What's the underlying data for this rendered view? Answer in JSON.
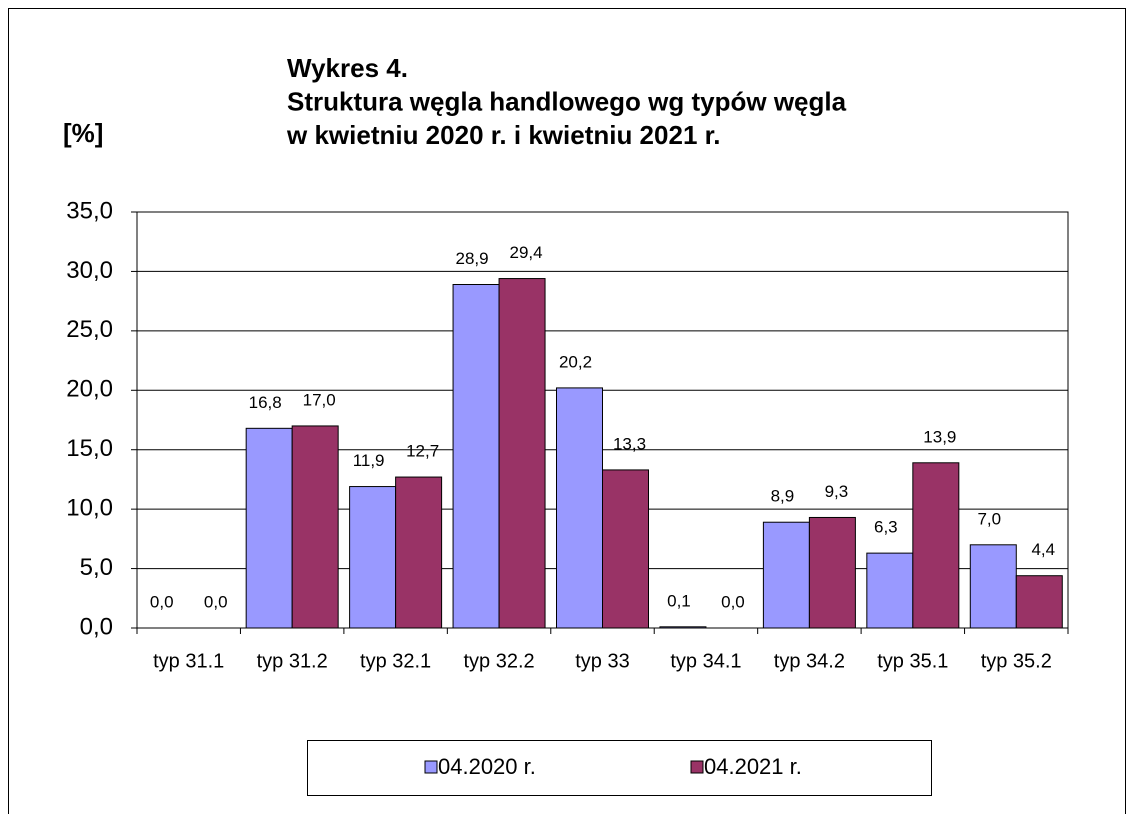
{
  "chart_data": {
    "type": "bar",
    "title_lines": [
      "Wykres 4.",
      "Struktura węgla handlowego wg typów węgla",
      "w kwietniu 2020 r. i kwietniu 2021 r."
    ],
    "y_label": "[%]",
    "categories": [
      "typ 31.1",
      "typ 31.2",
      "typ 32.1",
      "typ 32.2",
      "typ 33",
      "typ 34.1",
      "typ 34.2",
      "typ 35.1",
      "typ 35.2"
    ],
    "series": [
      {
        "name": "04.2020 r.",
        "color": "#9999ff",
        "values": [
          0.0,
          16.8,
          11.9,
          28.9,
          20.2,
          0.1,
          8.9,
          6.3,
          7.0
        ],
        "value_labels": [
          "0,0",
          "16,8",
          "11,9",
          "28,9",
          "20,2",
          "0,1",
          "8,9",
          "6,3",
          "7,0"
        ]
      },
      {
        "name": "04.2021 r.",
        "color": "#993366",
        "values": [
          0.0,
          17.0,
          12.7,
          29.4,
          13.3,
          0.0,
          9.3,
          13.9,
          4.4
        ],
        "value_labels": [
          "0,0",
          "17,0",
          "12,7",
          "29,4",
          "13,3",
          "0,0",
          "9,3",
          "13,9",
          "4,4"
        ]
      }
    ],
    "ylim": [
      0,
      35
    ],
    "yticks": [
      {
        "value": 0,
        "label": "0,0"
      },
      {
        "value": 5,
        "label": "5,0"
      },
      {
        "value": 10,
        "label": "10,0"
      },
      {
        "value": 15,
        "label": "15,0"
      },
      {
        "value": 20,
        "label": "20,0"
      },
      {
        "value": 25,
        "label": "25,0"
      },
      {
        "value": 30,
        "label": "30,0"
      },
      {
        "value": 35,
        "label": "35,0"
      }
    ],
    "grid": true,
    "legend": "bottom"
  }
}
